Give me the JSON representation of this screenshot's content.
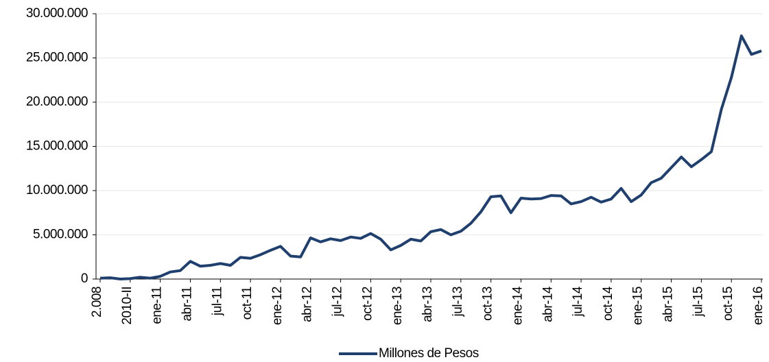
{
  "chart_data": {
    "type": "line",
    "categories": [
      "2.008",
      null,
      null,
      "2010-II",
      null,
      null,
      "ene-11",
      null,
      null,
      "abr-11",
      null,
      null,
      "jul-11",
      null,
      null,
      "oct-11",
      null,
      null,
      "ene-12",
      null,
      null,
      "abr-12",
      null,
      null,
      "jul-12",
      null,
      null,
      "oct-12",
      null,
      null,
      "ene-13",
      null,
      null,
      "abr-13",
      null,
      null,
      "jul-13",
      null,
      null,
      "oct-13",
      null,
      null,
      "ene-14",
      null,
      null,
      "abr-14",
      null,
      null,
      "jul-14",
      null,
      null,
      "oct-14",
      null,
      null,
      "ene-15",
      null,
      null,
      "abr-15",
      null,
      null,
      "jul-15",
      null,
      null,
      "oct-15",
      null,
      null,
      "ene-16"
    ],
    "series": [
      {
        "name": "Millones de Pesos",
        "color": "#1f3f6e",
        "values": [
          100000,
          150000,
          0,
          50000,
          200000,
          100000,
          300000,
          800000,
          950000,
          2000000,
          1450000,
          1550000,
          1750000,
          1550000,
          2450000,
          2350000,
          2750000,
          3250000,
          3700000,
          2600000,
          2500000,
          4650000,
          4200000,
          4550000,
          4350000,
          4750000,
          4600000,
          5150000,
          4500000,
          3300000,
          3800000,
          4500000,
          4300000,
          5350000,
          5600000,
          5000000,
          5400000,
          6300000,
          7600000,
          9300000,
          9400000,
          7500000,
          9150000,
          9050000,
          9100000,
          9450000,
          9400000,
          8500000,
          8750000,
          9250000,
          8700000,
          9050000,
          10250000,
          8750000,
          9500000,
          10900000,
          11400000,
          12600000,
          13800000,
          12700000,
          13500000,
          14400000,
          19200000,
          22800000,
          27500000,
          25400000,
          25800000
        ]
      }
    ],
    "ylim": [
      0,
      30000000
    ],
    "yticks": [
      0,
      {
        "value": 5000000,
        "label": "5.000.000"
      },
      {
        "value": 10000000,
        "label": "10.000.000"
      },
      {
        "value": 15000000,
        "label": "15.000.000"
      },
      {
        "value": 20000000,
        "label": "20.000.000"
      },
      {
        "value": 25000000,
        "label": "25.000.000"
      },
      {
        "value": 30000000,
        "label": "30.000.000"
      }
    ],
    "grid": true,
    "legend": "bottom"
  }
}
